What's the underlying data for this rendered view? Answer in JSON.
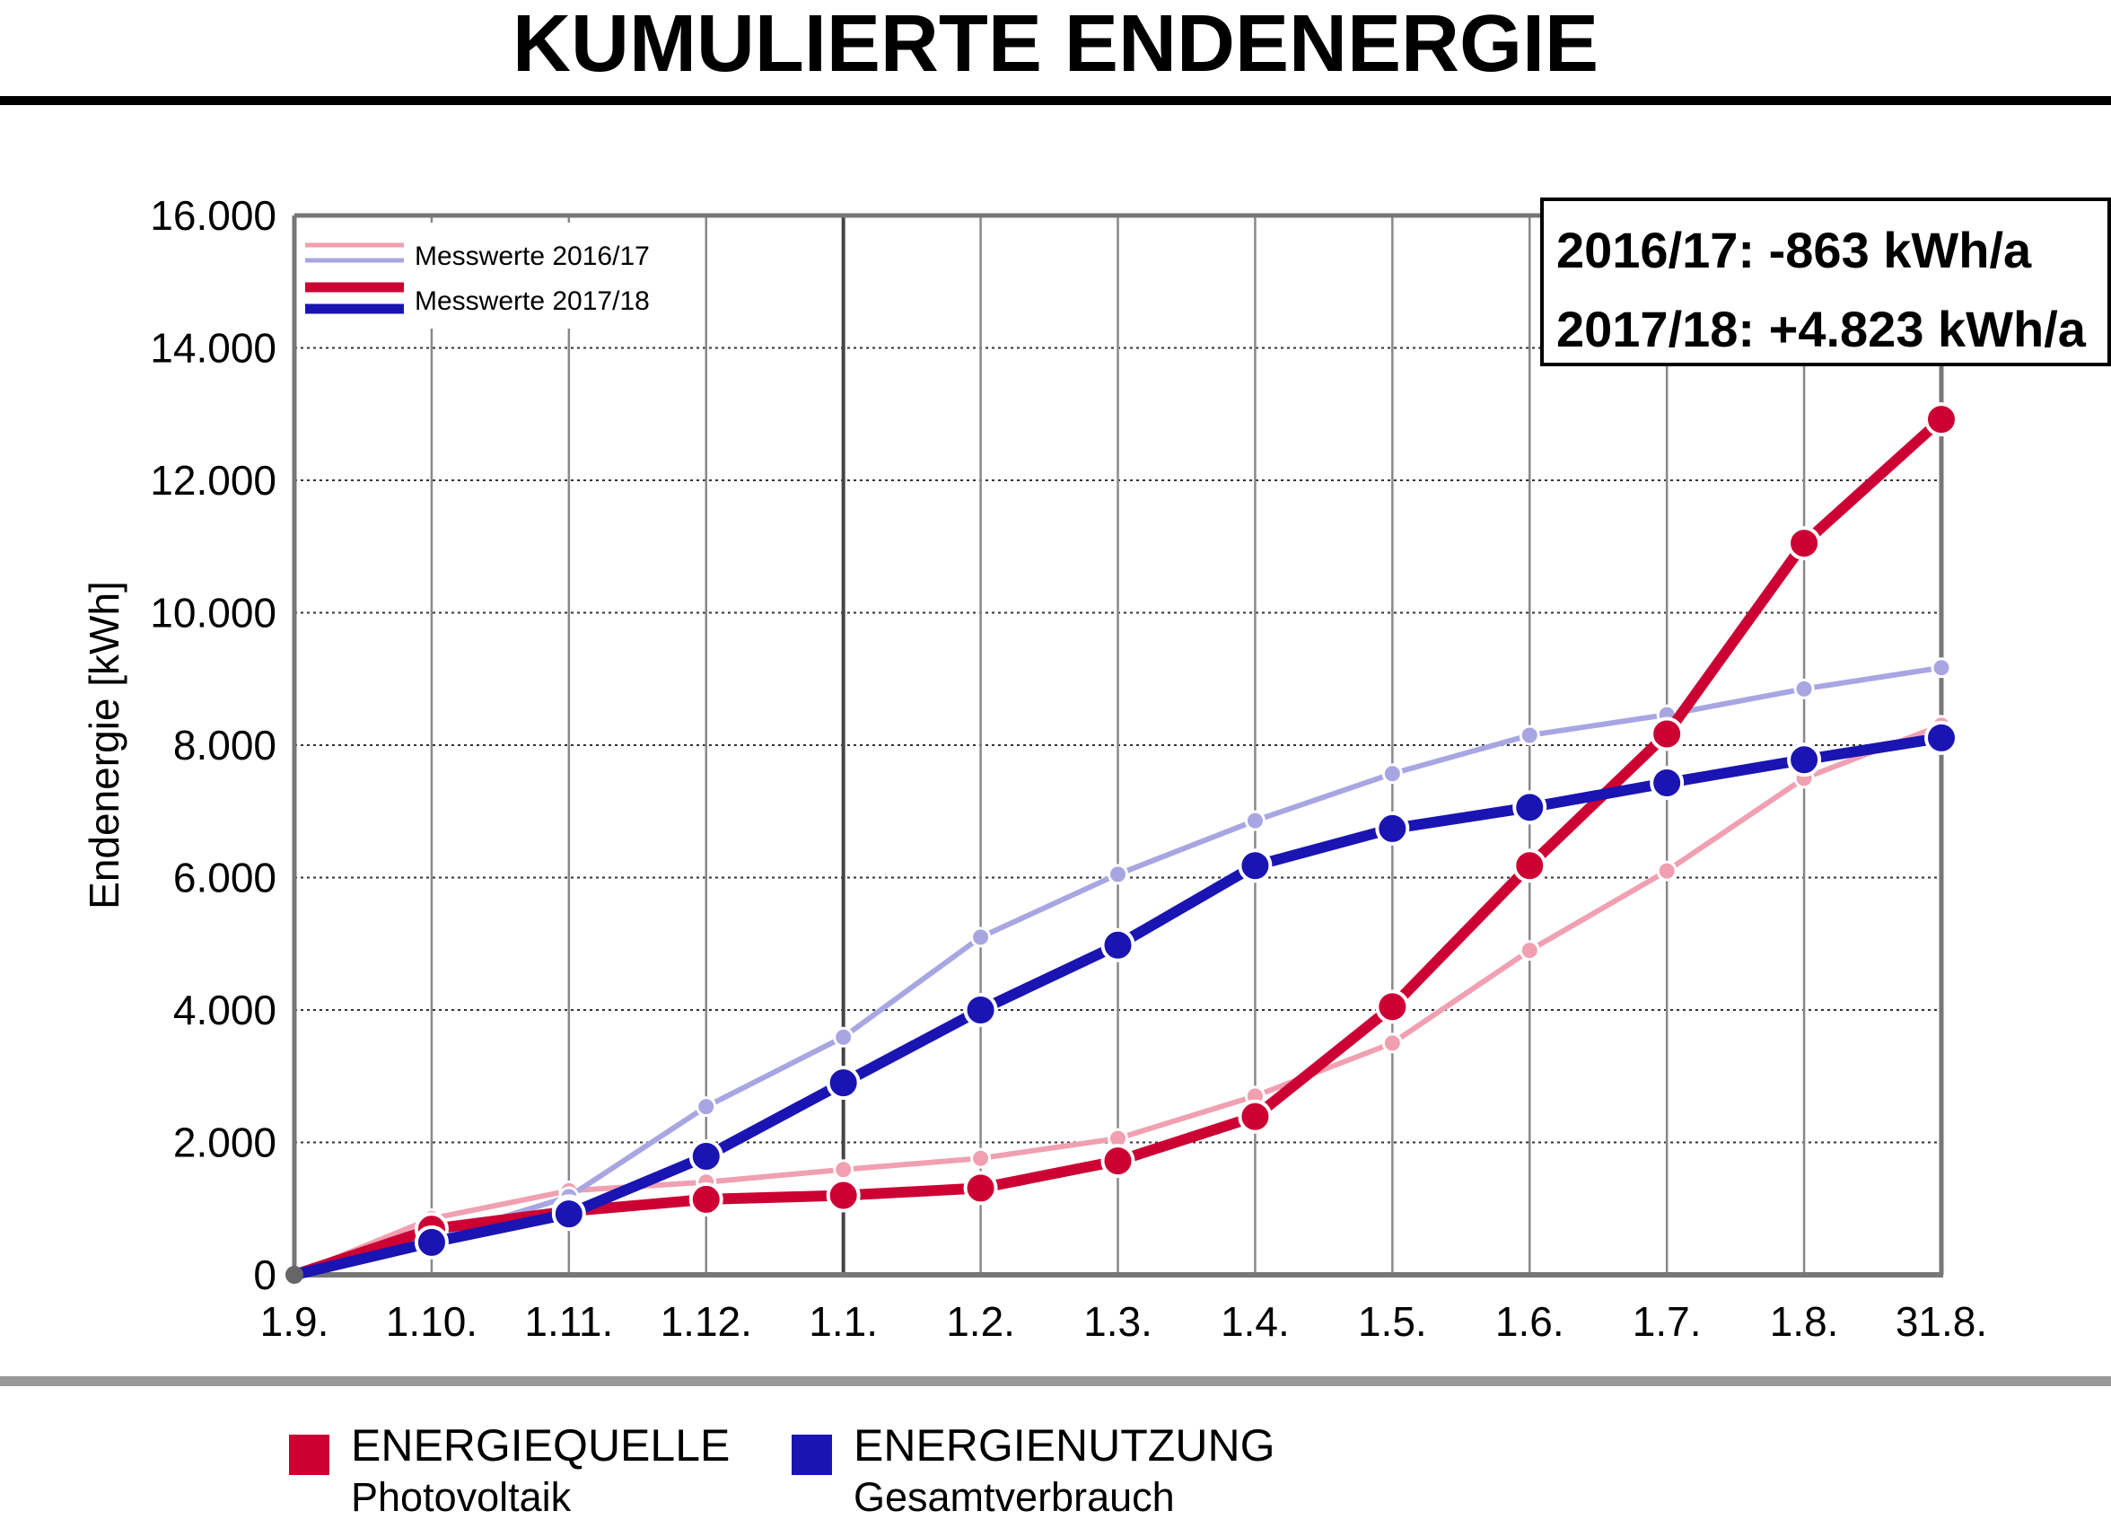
{
  "title": "KUMULIERTE ENDENERGIE",
  "legend_bottom": [
    {
      "label": "ENERGIEQUELLE",
      "sublabel": "Photovoltaik",
      "color": "#cc0033"
    },
    {
      "label": "ENERGIENUTZUNG",
      "sublabel": "Gesamtverbrauch",
      "color": "#1a14b3"
    }
  ],
  "chart_data": {
    "type": "line",
    "title": "",
    "xlabel": "",
    "ylabel": "Endenergie [kWh]",
    "categories": [
      "1.9.",
      "1.10.",
      "1.11.",
      "1.12.",
      "1.1.",
      "1.2.",
      "1.3.",
      "1.4.",
      "1.5.",
      "1.6.",
      "1.7.",
      "1.8.",
      "31.8."
    ],
    "yticks": [
      0,
      2000,
      4000,
      6000,
      8000,
      10000,
      12000,
      14000,
      16000
    ],
    "ytick_labels": [
      "0",
      "2.000",
      "4.000",
      "6.000",
      "8.000",
      "10.000",
      "12.000",
      "14.000",
      "16.000"
    ],
    "ylim": [
      0,
      16000
    ],
    "grid": true,
    "legend_position": "top-left",
    "legend": [
      {
        "label": "Messwerte 2016/17",
        "colors": [
          "#f0a0b0",
          "#a8a6e2"
        ]
      },
      {
        "label": "Messwerte 2017/18",
        "colors": [
          "#cc0033",
          "#1a14b3"
        ]
      }
    ],
    "annotation": [
      "2016/17: -863 kWh/a",
      "2017/18: +4.823 kWh/a"
    ],
    "series": [
      {
        "period": "2016/17",
        "kind": "source",
        "color": "#f0a0b0",
        "values": [
          0,
          850,
          1270,
          1400,
          1590,
          1760,
          2060,
          2700,
          3500,
          4900,
          6100,
          7500,
          8300
        ]
      },
      {
        "period": "2016/17",
        "kind": "usage",
        "color": "#a8a6e2",
        "values": [
          0,
          540,
          1180,
          2540,
          3590,
          5100,
          6050,
          6860,
          7570,
          8150,
          8460,
          8850,
          9170
        ]
      },
      {
        "period": "2017/18",
        "kind": "source",
        "color": "#cc0033",
        "values": [
          0,
          690,
          960,
          1140,
          1200,
          1310,
          1720,
          2390,
          4050,
          6180,
          8170,
          11050,
          12920
        ]
      },
      {
        "period": "2017/18",
        "kind": "usage",
        "color": "#1a14b3",
        "values": [
          0,
          490,
          920,
          1790,
          2900,
          4000,
          4980,
          6180,
          6740,
          7060,
          7430,
          7780,
          8110
        ]
      }
    ]
  }
}
